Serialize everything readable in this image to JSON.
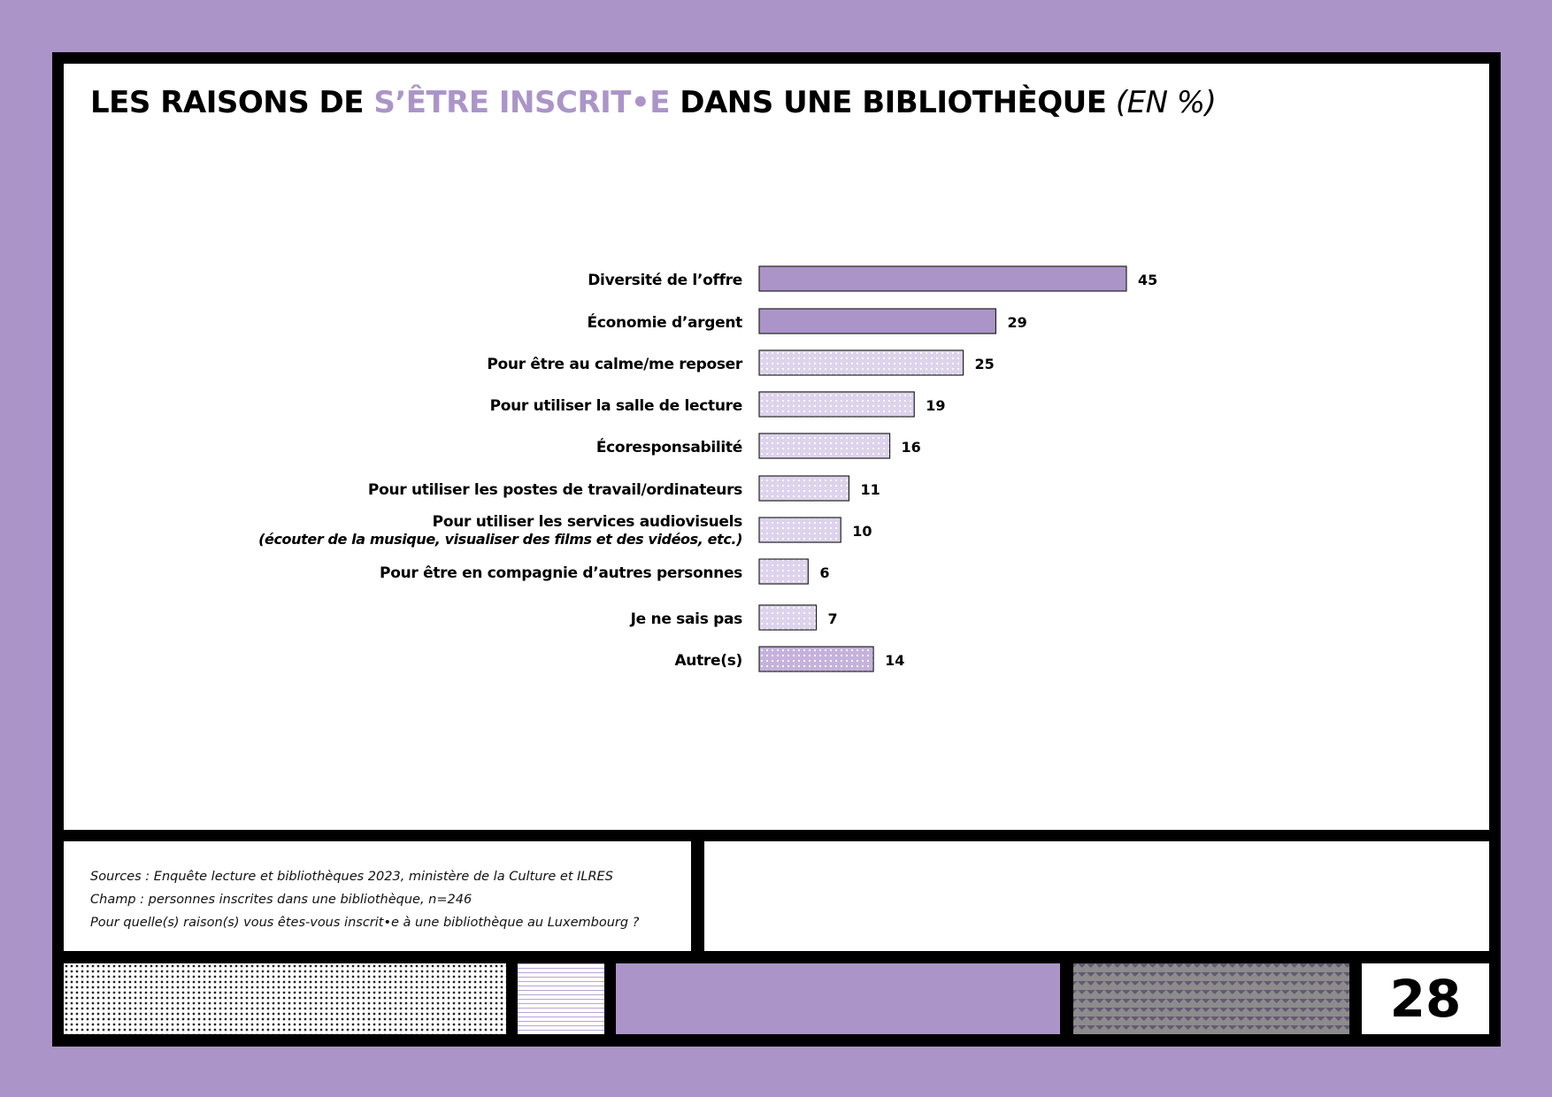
{
  "title": {
    "part1": "LES RAISONS DE ",
    "accent": "S’ÊTRE INSCRIT•E",
    "part2": "  DANS UNE BIBLIOTHÈQUE",
    "unit": " (EN %)"
  },
  "chart_data": {
    "type": "bar",
    "orientation": "horizontal",
    "categories": [
      "Diversité de l’offre",
      "Économie d’argent",
      "Pour être au calme/me reposer",
      "Pour utiliser la salle de lecture",
      "Écoresponsabilité",
      "Pour utiliser les postes de travail/ordinateurs",
      "Pour utiliser les services audiovisuels",
      "Pour être en compagnie d’autres personnes",
      "Je ne sais pas",
      "Autre(s)"
    ],
    "category_sublabels": [
      "",
      "",
      "",
      "",
      "",
      "",
      "(écouter de la musique, visualiser des films et des vidéos, etc.)",
      "",
      "",
      ""
    ],
    "values": [
      45,
      29,
      25,
      19,
      16,
      11,
      10,
      6,
      7,
      14
    ],
    "bar_styles": [
      "solid",
      "solid",
      "dots",
      "dots",
      "dots",
      "dots",
      "dots",
      "dots",
      "dots",
      "dots-dark"
    ],
    "xlim": [
      0,
      45
    ],
    "grid": false,
    "data_labels": true
  },
  "colors": {
    "background": "#ab95c8",
    "accent": "#ab95c8",
    "bar_solid": "#ab95c8",
    "bar_dotted": "#ddd3ec",
    "bar_dotted_dark": "#c7b6de"
  },
  "footer": {
    "sources": "Sources : Enquête lecture et bibliothèques 2023, ministère de la Culture et ILRES",
    "champ": "Champ : personnes inscrites dans une bibliothèque, n=246",
    "question": "Pour quelle(s) raison(s) vous êtes-vous inscrit•e à une bibliothèque au Luxembourg ?"
  },
  "page_number": "28"
}
